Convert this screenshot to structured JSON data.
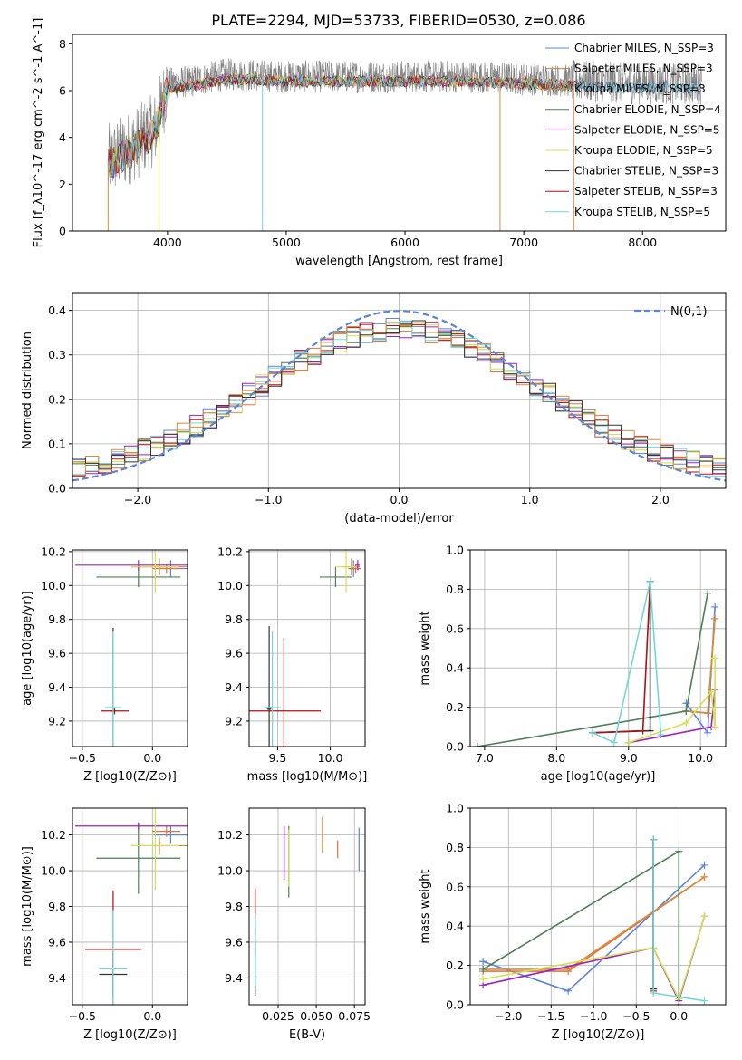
{
  "title": "PLATE=2294, MJD=53733, FIBERID=0530, z=0.086",
  "colors": {
    "chabrier_miles": "#5b84db",
    "salpeter_miles": "#e8703a",
    "kroupa_miles": "#d98c3a",
    "chabrier_elodie": "#4f7f57",
    "salpeter_elodie": "#a020c0",
    "kroupa_elodie": "#d4e050",
    "chabrier_stelib": "#333333",
    "salpeter_stelib": "#b01010",
    "kroupa_stelib": "#70d8d8",
    "data": "#808080",
    "gauss": "#5b84db"
  },
  "chart_data": [
    {
      "id": "spectrum",
      "type": "line",
      "xlabel": "wavelength [Angstrom, rest frame]",
      "ylabel": "Flux [f_λ10^-17 erg cm^-2 s^-1 A^-1]",
      "xlim": [
        3200,
        8700
      ],
      "ylim": [
        0,
        8.4
      ],
      "xticks": [
        4000,
        5000,
        6000,
        7000,
        8000
      ],
      "yticks": [
        0,
        2,
        4,
        6,
        8
      ],
      "grid": false,
      "legend_position": "top-right",
      "legend": [
        {
          "label": "Chabrier MILES, N_SSP=3",
          "color_key": "chabrier_miles"
        },
        {
          "label": "Salpeter MILES, N_SSP=3",
          "color_key": "salpeter_miles"
        },
        {
          "label": "Kroupa MILES, N_SSP=3",
          "color_key": "kroupa_miles"
        },
        {
          "label": "Chabrier ELODIE, N_SSP=4",
          "color_key": "chabrier_elodie"
        },
        {
          "label": "Salpeter ELODIE, N_SSP=5",
          "color_key": "salpeter_elodie"
        },
        {
          "label": "Kroupa ELODIE, N_SSP=5",
          "color_key": "kroupa_elodie"
        },
        {
          "label": "Chabrier STELIB, N_SSP=3",
          "color_key": "chabrier_stelib"
        },
        {
          "label": "Salpeter STELIB, N_SSP=3",
          "color_key": "salpeter_stelib"
        },
        {
          "label": "Kroupa STELIB, N_SSP=5",
          "color_key": "kroupa_stelib"
        }
      ],
      "continuum": {
        "x": [
          3500,
          3700,
          3900,
          4000,
          4200,
          4500,
          5000,
          5500,
          6000,
          6500,
          7000,
          7500,
          8000,
          8500
        ],
        "y": [
          3.0,
          3.6,
          4.4,
          6.3,
          6.4,
          6.7,
          6.6,
          6.6,
          6.6,
          6.6,
          6.5,
          6.4,
          6.3,
          6.3
        ]
      },
      "model_range": [
        3500,
        7420
      ],
      "data_range": [
        3500,
        8500
      ],
      "dips": [
        {
          "x": 3500,
          "y": 0.0,
          "series": "kroupa_miles"
        },
        {
          "x": 3930,
          "y": 0.0,
          "series": "kroupa_elodie"
        },
        {
          "x": 4800,
          "y": 0.0,
          "series": "kroupa_stelib"
        },
        {
          "x": 6800,
          "y": 0.0,
          "series": "kroupa_miles"
        },
        {
          "x": 7420,
          "y": 0.0,
          "series": "salpeter_miles"
        }
      ]
    },
    {
      "id": "residuals",
      "type": "histogram",
      "xlabel": "(data-model)/error",
      "ylabel": "Normed distribution",
      "xlim": [
        -2.5,
        2.5
      ],
      "ylim": [
        0,
        0.44
      ],
      "xticks": [
        -2,
        -1,
        0,
        1,
        2
      ],
      "yticks": [
        0.0,
        0.1,
        0.2,
        0.3,
        0.4
      ],
      "grid": true,
      "legend_position": "top-right",
      "legend": [
        {
          "label": "N(0,1)",
          "color_key": "gauss",
          "style": "dashed"
        }
      ],
      "bin_width": 0.1,
      "gaussian": {
        "mean": 0,
        "sigma": 1
      }
    },
    {
      "id": "age_vs_Z",
      "type": "scatter",
      "xlabel": "Z [log10(Z/Z⊙)]",
      "ylabel": "age  [log10(age/yr)]",
      "xlim": [
        -0.57,
        0.25
      ],
      "ylim": [
        9.05,
        10.21
      ],
      "xticks": [
        -0.5,
        0.0
      ],
      "yticks": [
        9.2,
        9.4,
        9.6,
        9.8,
        10.0,
        10.2
      ],
      "grid": true,
      "points": [
        {
          "series": "chabrier_miles",
          "x": 0.13,
          "y": 10.1,
          "xerr": 0.12,
          "yerr": 0.05
        },
        {
          "series": "salpeter_miles",
          "x": 0.1,
          "y": 10.1,
          "xerr": 0.1,
          "yerr": 0.03
        },
        {
          "series": "kroupa_miles",
          "x": 0.05,
          "y": 10.11,
          "xerr": 0.2,
          "yerr": 0.05
        },
        {
          "series": "chabrier_elodie",
          "x": -0.1,
          "y": 10.05,
          "xerr": 0.3,
          "yerr": 0.06
        },
        {
          "series": "salpeter_elodie",
          "x": -0.1,
          "y": 10.12,
          "xerr": 0.45,
          "yerr": 0.03
        },
        {
          "series": "kroupa_elodie",
          "x": 0.02,
          "y": 10.11,
          "xerr": 0.17,
          "yerr": 0.15
        },
        {
          "series": "chabrier_stelib",
          "x": -0.28,
          "y": 9.26,
          "xerr": 0.02,
          "yerr": 0.49
        },
        {
          "series": "salpeter_stelib",
          "x": -0.27,
          "y": 9.26,
          "xerr": 0.1,
          "yerr": 0.02
        },
        {
          "series": "kroupa_stelib",
          "x": -0.28,
          "y": 9.28,
          "xerr": 0.06,
          "yerr": 0.45
        }
      ]
    },
    {
      "id": "age_vs_mass",
      "type": "scatter",
      "xlabel": "mass [log10(M/M⊙)]",
      "ylabel": "",
      "xlim": [
        9.23,
        10.33
      ],
      "ylim": [
        9.05,
        10.21
      ],
      "xticks": [
        9.5,
        10.0
      ],
      "yticks": [
        9.2,
        9.4,
        9.6,
        9.8,
        10.0,
        10.2
      ],
      "grid": true,
      "points": [
        {
          "series": "chabrier_miles",
          "x": 10.22,
          "y": 10.1,
          "xerr": 0.05,
          "yerr": 0.05
        },
        {
          "series": "salpeter_miles",
          "x": 10.24,
          "y": 10.1,
          "xerr": 0.05,
          "yerr": 0.03
        },
        {
          "series": "kroupa_miles",
          "x": 10.2,
          "y": 10.11,
          "xerr": 0.08,
          "yerr": 0.05
        },
        {
          "series": "chabrier_elodie",
          "x": 10.05,
          "y": 10.05,
          "xerr": 0.15,
          "yerr": 0.06
        },
        {
          "series": "salpeter_elodie",
          "x": 10.26,
          "y": 10.12,
          "xerr": 0.02,
          "yerr": 0.03
        },
        {
          "series": "kroupa_elodie",
          "x": 10.15,
          "y": 10.11,
          "xerr": 0.1,
          "yerr": 0.15
        },
        {
          "series": "chabrier_stelib",
          "x": 9.42,
          "y": 9.27,
          "xerr": 0.02,
          "yerr": 0.49
        },
        {
          "series": "salpeter_stelib",
          "x": 9.56,
          "y": 9.26,
          "xerr": 0.35,
          "yerr": 0.43
        },
        {
          "series": "kroupa_stelib",
          "x": 9.45,
          "y": 9.28,
          "xerr": 0.08,
          "yerr": 0.45
        }
      ]
    },
    {
      "id": "weight_vs_age",
      "type": "line",
      "xlabel": "age  [log10(age/yr)]",
      "ylabel": "mass weight",
      "xlim": [
        6.8,
        10.35
      ],
      "ylim": [
        0,
        1.0
      ],
      "xticks": [
        7,
        8,
        9,
        10
      ],
      "yticks": [
        0.0,
        0.2,
        0.4,
        0.6,
        0.8,
        1.0
      ],
      "grid": true,
      "series": [
        {
          "key": "chabrier_miles",
          "x": [
            9.8,
            10.1,
            10.2
          ],
          "y": [
            0.22,
            0.07,
            0.71
          ]
        },
        {
          "key": "salpeter_miles",
          "x": [
            9.8,
            10.1,
            10.2
          ],
          "y": [
            0.18,
            0.17,
            0.65
          ]
        },
        {
          "key": "kroupa_miles",
          "x": [
            9.8,
            10.1,
            10.2
          ],
          "y": [
            0.18,
            0.17,
            0.65
          ]
        },
        {
          "key": "chabrier_elodie",
          "x": [
            6.9,
            9.8,
            10.1
          ],
          "y": [
            0.0,
            0.18,
            0.78
          ]
        },
        {
          "key": "salpeter_elodie",
          "x": [
            9.0,
            10.15,
            10.2
          ],
          "y": [
            0.02,
            0.1,
            0.29
          ]
        },
        {
          "key": "kroupa_elodie",
          "x": [
            9.0,
            9.8,
            10.15,
            10.2,
            10.2
          ],
          "y": [
            0.02,
            0.12,
            0.28,
            0.1,
            0.45
          ]
        },
        {
          "key": "chabrier_stelib",
          "x": [
            8.5,
            9.3,
            9.3
          ],
          "y": [
            0.07,
            0.08,
            0.84
          ]
        },
        {
          "key": "salpeter_stelib",
          "x": [
            8.5,
            9.2,
            9.3
          ],
          "y": [
            0.07,
            0.08,
            0.84
          ]
        },
        {
          "key": "kroupa_stelib",
          "x": [
            8.5,
            8.8,
            9.3,
            9.45
          ],
          "y": [
            0.07,
            0.02,
            0.84,
            0.06
          ]
        }
      ]
    },
    {
      "id": "mass_vs_Z",
      "type": "scatter",
      "xlabel": "Z [log10(Z/Z⊙)]",
      "ylabel": "mass [log10(M/M⊙)]",
      "xlim": [
        -0.57,
        0.25
      ],
      "ylim": [
        9.25,
        10.35
      ],
      "xticks": [
        -0.5,
        0.0
      ],
      "yticks": [
        9.4,
        9.6,
        9.8,
        10.0,
        10.2
      ],
      "grid": true,
      "points": [
        {
          "series": "chabrier_miles",
          "x": 0.13,
          "y": 10.2,
          "xerr": 0.12,
          "yerr": 0.05
        },
        {
          "series": "salpeter_miles",
          "x": 0.1,
          "y": 10.22,
          "xerr": 0.1,
          "yerr": 0.03
        },
        {
          "series": "kroupa_miles",
          "x": 0.05,
          "y": 10.14,
          "xerr": 0.2,
          "yerr": 0.05
        },
        {
          "series": "chabrier_elodie",
          "x": -0.1,
          "y": 10.07,
          "xerr": 0.3,
          "yerr": 0.2
        },
        {
          "series": "salpeter_elodie",
          "x": -0.1,
          "y": 10.25,
          "xerr": 0.45,
          "yerr": 0.02
        },
        {
          "series": "kroupa_elodie",
          "x": 0.02,
          "y": 10.14,
          "xerr": 0.17,
          "yerr": 0.25
        },
        {
          "series": "chabrier_stelib",
          "x": -0.28,
          "y": 9.42,
          "xerr": 0.1,
          "yerr": 0.12
        },
        {
          "series": "salpeter_stelib",
          "x": -0.28,
          "y": 9.56,
          "xerr": 0.2,
          "yerr": 0.33
        },
        {
          "series": "kroupa_stelib",
          "x": -0.28,
          "y": 9.45,
          "xerr": 0.1,
          "yerr": 0.33
        }
      ]
    },
    {
      "id": "mass_vs_ebv",
      "type": "scatter",
      "xlabel": "E(B-V)",
      "ylabel": "",
      "xlim": [
        0.006,
        0.082
      ],
      "ylim": [
        9.25,
        10.35
      ],
      "xticks": [
        0.025,
        0.05,
        0.075
      ],
      "yticks": [
        9.4,
        9.6,
        9.8,
        10.0,
        10.2
      ],
      "grid": true,
      "points": [
        {
          "series": "chabrier_miles",
          "x": 0.078,
          "y": 10.12,
          "xerr": 0.0,
          "yerr": 0.12
        },
        {
          "series": "salpeter_miles",
          "x": 0.064,
          "y": 10.12,
          "xerr": 0.0,
          "yerr": 0.05
        },
        {
          "series": "kroupa_miles",
          "x": 0.054,
          "y": 10.2,
          "xerr": 0.0,
          "yerr": 0.1
        },
        {
          "series": "chabrier_elodie",
          "x": 0.032,
          "y": 10.05,
          "xerr": 0.0,
          "yerr": 0.2
        },
        {
          "series": "salpeter_elodie",
          "x": 0.029,
          "y": 10.1,
          "xerr": 0.0,
          "yerr": 0.15
        },
        {
          "series": "kroupa_elodie",
          "x": 0.032,
          "y": 10.07,
          "xerr": 0.0,
          "yerr": 0.16
        },
        {
          "series": "chabrier_stelib",
          "x": 0.01,
          "y": 9.45,
          "xerr": 0.0,
          "yerr": 0.15
        },
        {
          "series": "salpeter_stelib",
          "x": 0.01,
          "y": 9.72,
          "xerr": 0.0,
          "yerr": 0.18
        },
        {
          "series": "kroupa_stelib",
          "x": 0.01,
          "y": 9.55,
          "xerr": 0.0,
          "yerr": 0.2
        }
      ]
    },
    {
      "id": "weight_vs_Z",
      "type": "line",
      "xlabel": "Z [log10(Z/Z⊙)]",
      "ylabel": "mass weight",
      "xlim": [
        -2.45,
        0.55
      ],
      "ylim": [
        0,
        1.0
      ],
      "xticks": [
        -2.0,
        -1.5,
        -1.0,
        -0.5,
        0.0
      ],
      "yticks": [
        0.0,
        0.2,
        0.4,
        0.6,
        0.8,
        1.0
      ],
      "grid": true,
      "series": [
        {
          "key": "chabrier_miles",
          "x": [
            -2.3,
            -1.3,
            0.3
          ],
          "y": [
            0.22,
            0.07,
            0.71
          ]
        },
        {
          "key": "salpeter_miles",
          "x": [
            -2.3,
            -1.3,
            0.3
          ],
          "y": [
            0.17,
            0.17,
            0.65
          ]
        },
        {
          "key": "kroupa_miles",
          "x": [
            -2.3,
            -1.3,
            0.3
          ],
          "y": [
            0.18,
            0.18,
            0.65
          ]
        },
        {
          "key": "chabrier_elodie",
          "x": [
            -2.3,
            0.0,
            0.0
          ],
          "y": [
            0.18,
            0.78,
            0.0
          ]
        },
        {
          "key": "salpeter_elodie",
          "x": [
            -2.3,
            -0.3,
            0.0,
            0.3
          ],
          "y": [
            0.1,
            0.29,
            0.02,
            0.45
          ]
        },
        {
          "key": "kroupa_elodie",
          "x": [
            -2.3,
            -0.3,
            0.0,
            0.3
          ],
          "y": [
            0.13,
            0.29,
            0.03,
            0.45
          ]
        },
        {
          "key": "chabrier_stelib",
          "x": [
            -0.3,
            -0.3
          ],
          "y": [
            0.84,
            0.08
          ]
        },
        {
          "key": "salpeter_stelib",
          "x": [
            -0.3,
            -0.3
          ],
          "y": [
            0.84,
            0.07
          ]
        },
        {
          "key": "kroupa_stelib",
          "x": [
            -0.3,
            -0.3,
            0.3
          ],
          "y": [
            0.84,
            0.06,
            0.02
          ]
        }
      ]
    }
  ]
}
